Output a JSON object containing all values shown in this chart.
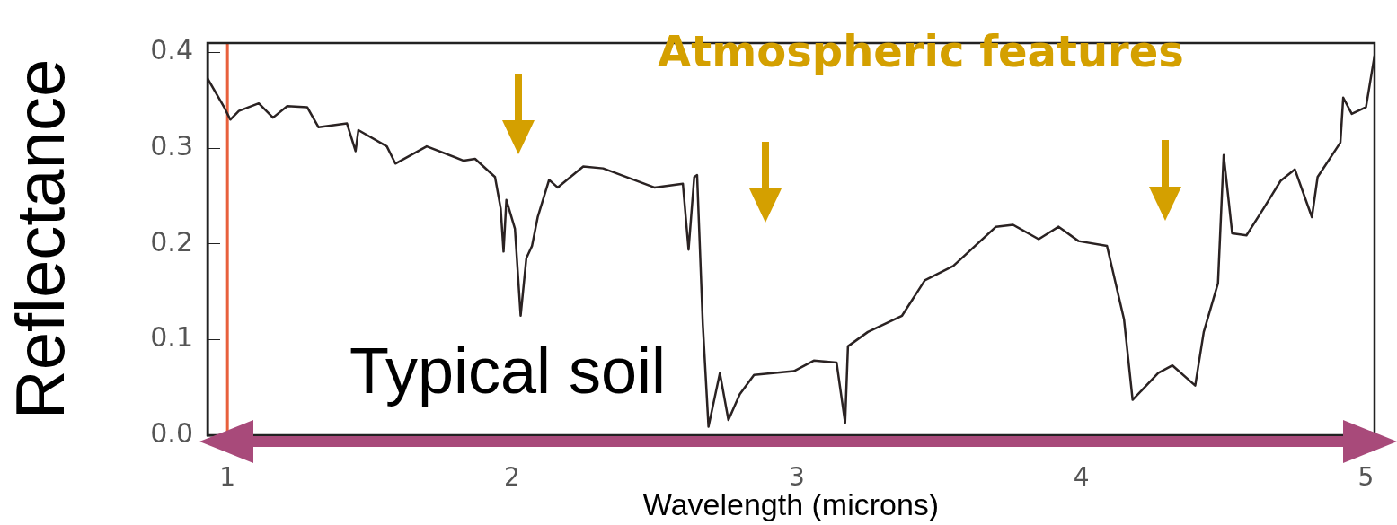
{
  "chart_data": {
    "type": "line",
    "xlabel": "Wavelength (microns)",
    "ylabel": "Reflectance",
    "xlim": [
      0.93,
      5.03
    ],
    "xticks": [
      1,
      2,
      3,
      4,
      5
    ],
    "ylim": [
      0,
      0.41
    ],
    "yticks": [
      {
        "value": 0,
        "label": "0.0"
      },
      0.1,
      0.2,
      0.3,
      0.4
    ],
    "grid": false,
    "legend": false,
    "marker": "none",
    "line_style": "solid",
    "ref_lines": [
      {
        "axis": "x",
        "value": 1,
        "color": "#e8603c"
      }
    ],
    "annotations": [
      "Typical soil",
      "Atmospheric features"
    ],
    "series": [
      {
        "color": "#2a2222",
        "x": [
          0.93,
          0.99,
          1.01,
          1.04,
          1.11,
          1.16,
          1.21,
          1.28,
          1.32,
          1.42,
          1.45,
          1.46,
          1.56,
          1.59,
          1.7,
          1.83,
          1.87,
          1.94,
          1.96,
          1.97,
          1.98,
          2.01,
          2.03,
          2.05,
          2.07,
          2.09,
          2.13,
          2.16,
          2.25,
          2.32,
          2.5,
          2.6,
          2.62,
          2.64,
          2.65,
          2.67,
          2.69,
          2.73,
          2.76,
          2.8,
          2.85,
          2.99,
          3.06,
          3.14,
          3.17,
          3.18,
          3.25,
          3.37,
          3.45,
          3.55,
          3.7,
          3.76,
          3.85,
          3.92,
          3.99,
          4.09,
          4.15,
          4.18,
          4.27,
          4.32,
          4.4,
          4.43,
          4.48,
          4.5,
          4.53,
          4.58,
          4.64,
          4.7,
          4.75,
          4.81,
          4.83,
          4.91,
          4.92,
          4.95,
          5.0,
          5.03
        ],
        "values": [
          0.373,
          0.342,
          0.33,
          0.339,
          0.347,
          0.332,
          0.344,
          0.343,
          0.322,
          0.326,
          0.297,
          0.319,
          0.302,
          0.284,
          0.302,
          0.287,
          0.289,
          0.27,
          0.237,
          0.192,
          0.246,
          0.216,
          0.125,
          0.185,
          0.198,
          0.228,
          0.267,
          0.259,
          0.281,
          0.279,
          0.259,
          0.263,
          0.194,
          0.27,
          0.272,
          0.116,
          0.009,
          0.065,
          0.016,
          0.043,
          0.063,
          0.067,
          0.078,
          0.076,
          0.013,
          0.093,
          0.108,
          0.125,
          0.162,
          0.177,
          0.218,
          0.22,
          0.205,
          0.218,
          0.203,
          0.198,
          0.121,
          0.037,
          0.065,
          0.073,
          0.052,
          0.108,
          0.159,
          0.293,
          0.211,
          0.209,
          0.237,
          0.266,
          0.278,
          0.228,
          0.27,
          0.306,
          0.353,
          0.336,
          0.343,
          0.397
        ]
      }
    ]
  }
}
